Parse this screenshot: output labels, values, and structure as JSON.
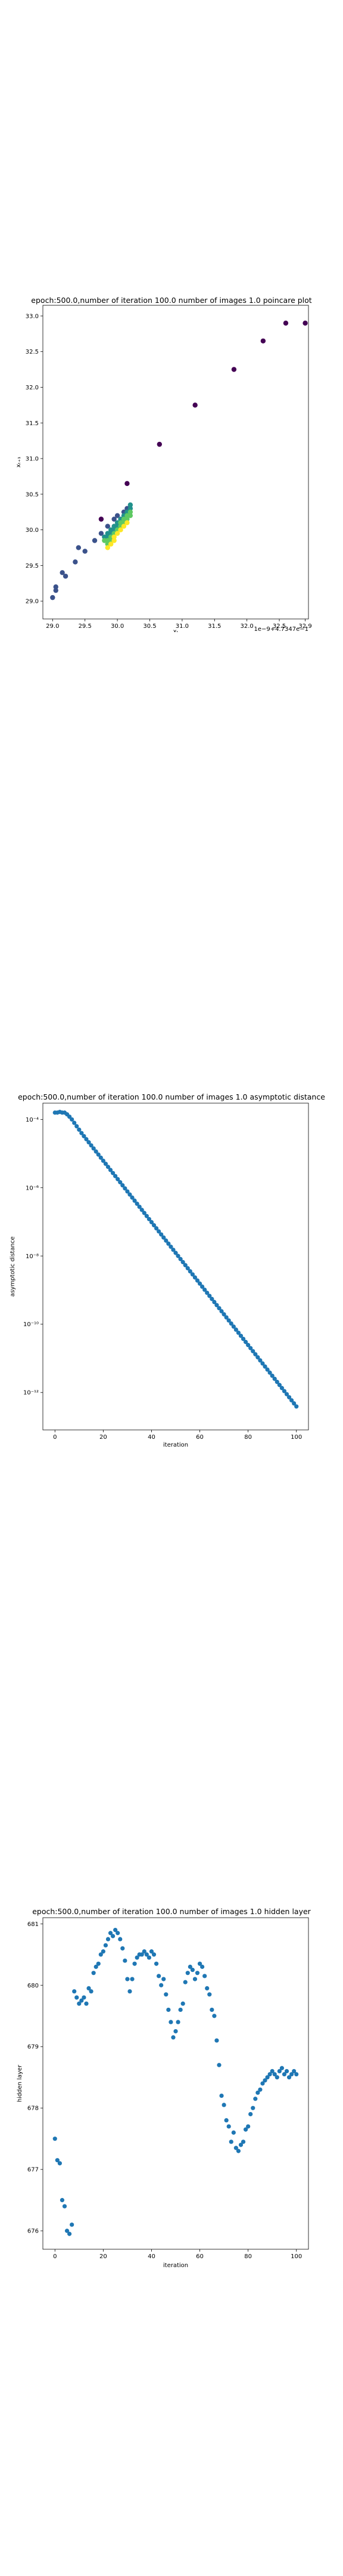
{
  "chart_data": [
    {
      "type": "scatter",
      "title": "epoch:500.0,number of iteration 100.0 number of images 1.0 poincare plot",
      "xlabel": "xₜ",
      "ylabel": "xₜ₊₁",
      "offset_label": "1e−9+4.7347e−1",
      "xlim": [
        28.85,
        32.95
      ],
      "ylim": [
        28.75,
        33.15
      ],
      "xticks": [
        29.0,
        29.5,
        30.0,
        30.5,
        31.0,
        31.5,
        32.0,
        32.5,
        32.9
      ],
      "xtick_labels": [
        "29.0",
        "29.5",
        "30.0",
        "30.5",
        "31.0",
        "31.5",
        "32.0",
        "32.5",
        "32.9"
      ],
      "yticks": [
        29.0,
        29.5,
        30.0,
        30.5,
        31.0,
        31.5,
        32.0,
        32.5,
        33.0
      ],
      "ytick_labels": [
        "29.0",
        "29.5",
        "30.0",
        "30.5",
        "31.0",
        "31.5",
        "32.0",
        "32.5",
        "33.0"
      ],
      "colormap": [
        "#440154",
        "#3b528b",
        "#21918c",
        "#5ec962",
        "#fde725"
      ],
      "points": [
        [
          32.9,
          32.9
        ],
        [
          32.6,
          32.9
        ],
        [
          32.25,
          32.65
        ],
        [
          31.8,
          32.25
        ],
        [
          31.2,
          31.75
        ],
        [
          30.65,
          31.2
        ],
        [
          30.15,
          30.65
        ],
        [
          29.75,
          30.15
        ],
        [
          29.4,
          29.75
        ],
        [
          29.15,
          29.4
        ],
        [
          29.05,
          29.15
        ],
        [
          29.0,
          29.05
        ],
        [
          29.05,
          29.2
        ],
        [
          29.2,
          29.35
        ],
        [
          29.35,
          29.55
        ],
        [
          29.5,
          29.7
        ],
        [
          29.65,
          29.85
        ],
        [
          29.75,
          29.95
        ],
        [
          29.85,
          30.05
        ],
        [
          29.95,
          30.15
        ],
        [
          30.0,
          30.2
        ],
        [
          30.1,
          30.25
        ],
        [
          30.15,
          30.3
        ],
        [
          30.2,
          30.35
        ],
        [
          30.2,
          30.3
        ],
        [
          30.15,
          30.25
        ],
        [
          30.1,
          30.2
        ],
        [
          30.05,
          30.15
        ],
        [
          30.0,
          30.1
        ],
        [
          29.95,
          30.05
        ],
        [
          29.9,
          30.0
        ],
        [
          29.85,
          29.95
        ],
        [
          29.8,
          29.9
        ],
        [
          29.85,
          29.9
        ],
        [
          29.9,
          29.95
        ],
        [
          29.95,
          30.0
        ],
        [
          30.0,
          30.05
        ],
        [
          30.05,
          30.1
        ],
        [
          30.1,
          30.15
        ],
        [
          30.15,
          30.2
        ],
        [
          30.2,
          30.25
        ],
        [
          30.2,
          30.2
        ],
        [
          30.15,
          30.15
        ],
        [
          30.1,
          30.1
        ],
        [
          30.05,
          30.05
        ],
        [
          30.0,
          30.0
        ],
        [
          29.95,
          29.95
        ],
        [
          29.9,
          29.9
        ],
        [
          29.85,
          29.85
        ],
        [
          29.8,
          29.85
        ],
        [
          29.85,
          29.8
        ],
        [
          29.9,
          29.85
        ],
        [
          29.95,
          29.9
        ],
        [
          30.0,
          29.95
        ],
        [
          30.05,
          30.0
        ],
        [
          30.1,
          30.05
        ],
        [
          30.15,
          30.1
        ],
        [
          29.85,
          29.75
        ],
        [
          29.9,
          29.8
        ],
        [
          29.95,
          29.85
        ]
      ]
    },
    {
      "type": "scatter",
      "title": "epoch:500.0,number of iteration 100.0  number of images 1.0 asymptotic distance",
      "xlabel": "iteration",
      "ylabel": "asymptotic distance",
      "yscale": "log",
      "xlim": [
        -5,
        105
      ],
      "ylim": [
        8e-14,
        0.0003
      ],
      "xticks": [
        0,
        20,
        40,
        60,
        80,
        100
      ],
      "yticks": [
        0.0001,
        1e-06,
        1e-08,
        1e-10,
        1e-12
      ],
      "ytick_labels": [
        "10⁻⁴",
        "10⁻⁶",
        "10⁻⁸",
        "10⁻¹⁰",
        "10⁻¹²"
      ],
      "color": "#1f77b4",
      "x": [
        0,
        1,
        2,
        3,
        4,
        5,
        6,
        7,
        8,
        9,
        10,
        11,
        12,
        13,
        14,
        15,
        16,
        17,
        18,
        19,
        20,
        21,
        22,
        23,
        24,
        25,
        26,
        27,
        28,
        29,
        30,
        31,
        32,
        33,
        34,
        35,
        36,
        37,
        38,
        39,
        40,
        41,
        42,
        43,
        44,
        45,
        46,
        47,
        48,
        49,
        50,
        51,
        52,
        53,
        54,
        55,
        56,
        57,
        58,
        59,
        60,
        61,
        62,
        63,
        64,
        65,
        66,
        67,
        68,
        69,
        70,
        71,
        72,
        73,
        74,
        75,
        76,
        77,
        78,
        79,
        80,
        81,
        82,
        83,
        84,
        85,
        86,
        87,
        88,
        89,
        90,
        91,
        92,
        93,
        94,
        95,
        96,
        97,
        98,
        99,
        100
      ],
      "log10_y": [
        -3.8,
        -3.8,
        -3.78,
        -3.8,
        -3.8,
        -3.85,
        -3.92,
        -4.0,
        -4.1,
        -4.2,
        -4.3,
        -4.4,
        -4.49,
        -4.58,
        -4.67,
        -4.76,
        -4.85,
        -4.94,
        -5.03,
        -5.12,
        -5.21,
        -5.3,
        -5.39,
        -5.48,
        -5.57,
        -5.66,
        -5.75,
        -5.84,
        -5.93,
        -6.02,
        -6.11,
        -6.2,
        -6.29,
        -6.38,
        -6.47,
        -6.56,
        -6.65,
        -6.74,
        -6.83,
        -6.92,
        -7.01,
        -7.1,
        -7.19,
        -7.28,
        -7.37,
        -7.46,
        -7.55,
        -7.64,
        -7.73,
        -7.82,
        -7.91,
        -8.0,
        -8.09,
        -8.18,
        -8.27,
        -8.36,
        -8.45,
        -8.54,
        -8.63,
        -8.72,
        -8.81,
        -8.9,
        -8.99,
        -9.08,
        -9.17,
        -9.26,
        -9.35,
        -9.44,
        -9.53,
        -9.62,
        -9.71,
        -9.8,
        -9.89,
        -9.98,
        -10.07,
        -10.16,
        -10.25,
        -10.34,
        -10.43,
        -10.52,
        -10.61,
        -10.7,
        -10.79,
        -10.88,
        -10.97,
        -11.06,
        -11.15,
        -11.24,
        -11.33,
        -11.42,
        -11.51,
        -11.6,
        -11.69,
        -11.78,
        -11.87,
        -11.96,
        -12.05,
        -12.14,
        -12.23,
        -12.32,
        -12.41
      ]
    },
    {
      "type": "scatter",
      "title": "epoch:500.0,number of iteration 100.0  number of images 1.0 hidden layer",
      "xlabel": "iteration",
      "ylabel": "hidden layer",
      "xlim": [
        -5,
        105
      ],
      "ylim": [
        675.7,
        681.1
      ],
      "xticks": [
        0,
        20,
        40,
        60,
        80,
        100
      ],
      "yticks": [
        676,
        677,
        678,
        679,
        680,
        681
      ],
      "color": "#1f77b4",
      "x": [
        0,
        1,
        2,
        3,
        4,
        5,
        6,
        7,
        8,
        9,
        10,
        11,
        12,
        13,
        14,
        15,
        16,
        17,
        18,
        19,
        20,
        21,
        22,
        23,
        24,
        25,
        26,
        27,
        28,
        29,
        30,
        31,
        32,
        33,
        34,
        35,
        36,
        37,
        38,
        39,
        40,
        41,
        42,
        43,
        44,
        45,
        46,
        47,
        48,
        49,
        50,
        51,
        52,
        53,
        54,
        55,
        56,
        57,
        58,
        59,
        60,
        61,
        62,
        63,
        64,
        65,
        66,
        67,
        68,
        69,
        70,
        71,
        72,
        73,
        74,
        75,
        76,
        77,
        78,
        79,
        80,
        81,
        82,
        83,
        84,
        85,
        86,
        87,
        88,
        89,
        90,
        91,
        92,
        93,
        94,
        95,
        96,
        97,
        98,
        99,
        100
      ],
      "y": [
        677.5,
        677.15,
        677.1,
        676.5,
        676.4,
        676.0,
        675.95,
        676.1,
        679.9,
        679.8,
        679.7,
        679.75,
        679.8,
        679.7,
        679.95,
        679.9,
        680.2,
        680.3,
        680.35,
        680.5,
        680.55,
        680.65,
        680.75,
        680.85,
        680.8,
        680.9,
        680.85,
        680.75,
        680.6,
        680.4,
        680.1,
        679.9,
        680.1,
        680.35,
        680.45,
        680.5,
        680.5,
        680.55,
        680.5,
        680.45,
        680.55,
        680.5,
        680.35,
        680.15,
        680.0,
        680.1,
        679.85,
        679.6,
        679.4,
        679.15,
        679.25,
        679.4,
        679.6,
        679.7,
        680.05,
        680.2,
        680.3,
        680.25,
        680.1,
        680.2,
        680.35,
        680.3,
        680.15,
        679.95,
        679.85,
        679.6,
        679.5,
        679.1,
        678.7,
        678.2,
        678.05,
        677.8,
        677.7,
        677.45,
        677.6,
        677.35,
        677.3,
        677.4,
        677.45,
        677.65,
        677.7,
        677.9,
        678.0,
        678.15,
        678.25,
        678.3,
        678.4,
        678.45,
        678.5,
        678.55,
        678.6,
        678.55,
        678.5,
        678.6,
        678.65,
        678.55,
        678.6,
        678.5,
        678.55,
        678.6,
        678.55
      ]
    }
  ]
}
